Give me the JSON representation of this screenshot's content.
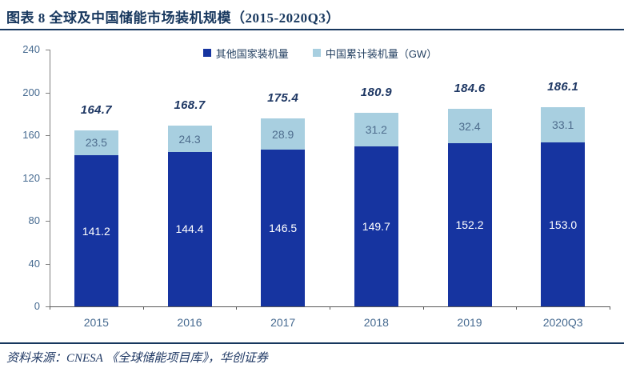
{
  "header": {
    "title": "图表 8  全球及中国储能市场装机规模（2015-2020Q3）"
  },
  "chart_data": {
    "type": "bar",
    "stacked": true,
    "title": "全球及中国储能市场装机规模（2015-2020Q3）",
    "categories": [
      "2015",
      "2016",
      "2017",
      "2018",
      "2019",
      "2020Q3"
    ],
    "series": [
      {
        "name": "其他国家装机量",
        "color": "#1634a0",
        "label_color": "#ffffff",
        "values": [
          141.2,
          144.4,
          146.5,
          149.7,
          152.2,
          153.0
        ]
      },
      {
        "name": "中国累计装机量（GW）",
        "color": "#a8cfe0",
        "label_color": "#4e6d8d",
        "values": [
          23.5,
          24.3,
          28.9,
          31.2,
          32.4,
          33.1
        ]
      }
    ],
    "totals": [
      164.7,
      168.7,
      175.4,
      180.9,
      184.6,
      186.1
    ],
    "xlabel": "",
    "ylabel": "",
    "ylim": [
      0,
      240
    ],
    "yticks": [
      0,
      40,
      80,
      120,
      160,
      200,
      240
    ],
    "grid": false,
    "legend_position": "top-center"
  },
  "footer": {
    "source": "资料来源：CNESA 《全球储能项目库》，华创证券"
  }
}
